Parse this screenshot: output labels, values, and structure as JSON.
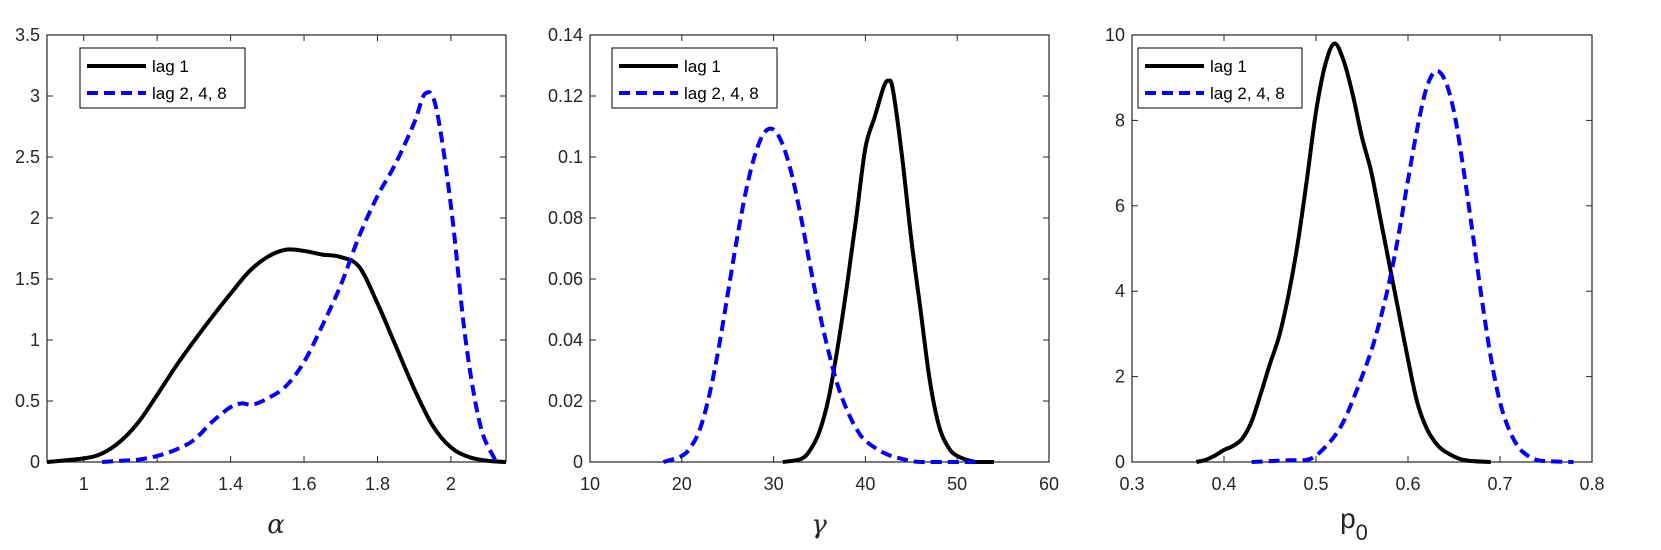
{
  "chart_data": [
    {
      "type": "line",
      "xlabel": "α",
      "ylabel": "",
      "xlim": [
        0.9,
        2.15
      ],
      "ylim": [
        0,
        3.5
      ],
      "xticks": [
        1,
        1.2,
        1.4,
        1.6,
        1.8,
        2
      ],
      "xtick_labels": [
        "1",
        "1.2",
        "1.4",
        "1.6",
        "1.8",
        "2"
      ],
      "yticks": [
        0,
        0.5,
        1,
        1.5,
        2,
        2.5,
        3,
        3.5
      ],
      "ytick_labels": [
        "0",
        "0.5",
        "1",
        "1.5",
        "2",
        "2.5",
        "3",
        "3.5"
      ],
      "legend_position": "top-left",
      "series": [
        {
          "name": "lag 1",
          "color": "#000000",
          "style": "solid",
          "x": [
            0.9,
            1.0,
            1.05,
            1.1,
            1.15,
            1.2,
            1.25,
            1.3,
            1.35,
            1.4,
            1.45,
            1.5,
            1.55,
            1.6,
            1.65,
            1.7,
            1.75,
            1.8,
            1.85,
            1.9,
            1.95,
            2.0,
            2.05,
            2.1,
            2.15
          ],
          "y": [
            0.0,
            0.03,
            0.07,
            0.17,
            0.33,
            0.55,
            0.78,
            0.99,
            1.19,
            1.38,
            1.56,
            1.68,
            1.74,
            1.73,
            1.7,
            1.68,
            1.6,
            1.3,
            0.95,
            0.6,
            0.3,
            0.12,
            0.04,
            0.01,
            0.0
          ]
        },
        {
          "name": "lag 2, 4, 8",
          "color": "#0000ff",
          "style": "dashed",
          "x": [
            1.05,
            1.1,
            1.15,
            1.2,
            1.25,
            1.3,
            1.35,
            1.4,
            1.43,
            1.46,
            1.5,
            1.55,
            1.6,
            1.65,
            1.7,
            1.75,
            1.8,
            1.85,
            1.9,
            1.93,
            1.96,
            2.0,
            2.04,
            2.08,
            2.12
          ],
          "y": [
            0.0,
            0.01,
            0.02,
            0.05,
            0.1,
            0.18,
            0.33,
            0.45,
            0.48,
            0.47,
            0.52,
            0.62,
            0.82,
            1.12,
            1.45,
            1.85,
            2.18,
            2.45,
            2.78,
            3.02,
            2.9,
            2.1,
            1.0,
            0.3,
            0.02
          ]
        }
      ]
    },
    {
      "type": "line",
      "xlabel": "γ",
      "ylabel": "",
      "xlim": [
        10,
        60
      ],
      "ylim": [
        0,
        0.14
      ],
      "xticks": [
        10,
        20,
        30,
        40,
        50,
        60
      ],
      "xtick_labels": [
        "10",
        "20",
        "30",
        "40",
        "50",
        "60"
      ],
      "yticks": [
        0,
        0.02,
        0.04,
        0.06,
        0.08,
        0.1,
        0.12,
        0.14
      ],
      "ytick_labels": [
        "0",
        "0.02",
        "0.04",
        "0.06",
        "0.08",
        "0.1",
        "0.12",
        "0.14"
      ],
      "legend_position": "top-left",
      "series": [
        {
          "name": "lag 1",
          "color": "#000000",
          "style": "solid",
          "x": [
            31,
            33,
            34,
            35,
            36,
            37,
            38,
            39,
            40,
            41,
            42,
            42.5,
            43,
            44,
            45,
            46,
            47,
            48,
            49,
            50,
            52,
            54
          ],
          "y": [
            0.0,
            0.001,
            0.004,
            0.01,
            0.021,
            0.038,
            0.058,
            0.08,
            0.103,
            0.113,
            0.123,
            0.125,
            0.122,
            0.1,
            0.073,
            0.05,
            0.027,
            0.012,
            0.005,
            0.002,
            0.0,
            0.0
          ]
        },
        {
          "name": "lag 2, 4, 8",
          "color": "#0000ff",
          "style": "dashed",
          "x": [
            18,
            20,
            21,
            22,
            23,
            24,
            25,
            26,
            27,
            28,
            29,
            30,
            31,
            32,
            33,
            34,
            35,
            36,
            37,
            38,
            39,
            40,
            42,
            44,
            46,
            50,
            52
          ],
          "y": [
            0.0,
            0.002,
            0.005,
            0.011,
            0.022,
            0.037,
            0.055,
            0.073,
            0.089,
            0.101,
            0.108,
            0.109,
            0.104,
            0.094,
            0.08,
            0.064,
            0.049,
            0.036,
            0.025,
            0.017,
            0.011,
            0.007,
            0.003,
            0.001,
            0.0,
            0.0,
            0.0
          ]
        }
      ]
    },
    {
      "type": "line",
      "xlabel": "p",
      "xlabel_subscript": "0",
      "ylabel": "",
      "xlim": [
        0.3,
        0.8
      ],
      "ylim": [
        0,
        10
      ],
      "xticks": [
        0.3,
        0.4,
        0.5,
        0.6,
        0.7,
        0.8
      ],
      "xtick_labels": [
        "0.3",
        "0.4",
        "0.5",
        "0.6",
        "0.7",
        "0.8"
      ],
      "yticks": [
        0,
        2,
        4,
        6,
        8,
        10
      ],
      "ytick_labels": [
        "0",
        "2",
        "4",
        "6",
        "8",
        "10"
      ],
      "legend_position": "top-left",
      "series": [
        {
          "name": "lag 1",
          "color": "#000000",
          "style": "solid",
          "x": [
            0.37,
            0.38,
            0.39,
            0.4,
            0.41,
            0.42,
            0.43,
            0.44,
            0.45,
            0.46,
            0.47,
            0.48,
            0.49,
            0.5,
            0.51,
            0.52,
            0.53,
            0.54,
            0.55,
            0.56,
            0.57,
            0.58,
            0.59,
            0.6,
            0.61,
            0.62,
            0.63,
            0.64,
            0.66,
            0.69
          ],
          "y": [
            0.0,
            0.05,
            0.15,
            0.28,
            0.38,
            0.55,
            0.95,
            1.6,
            2.3,
            2.95,
            3.9,
            5.1,
            6.6,
            8.2,
            9.3,
            9.8,
            9.4,
            8.6,
            7.6,
            6.8,
            5.7,
            4.6,
            3.5,
            2.4,
            1.4,
            0.8,
            0.45,
            0.25,
            0.05,
            0.0
          ]
        },
        {
          "name": "lag 2, 4, 8",
          "color": "#0000ff",
          "style": "dashed",
          "x": [
            0.43,
            0.45,
            0.47,
            0.49,
            0.5,
            0.51,
            0.52,
            0.53,
            0.54,
            0.55,
            0.56,
            0.57,
            0.58,
            0.59,
            0.6,
            0.61,
            0.62,
            0.63,
            0.64,
            0.65,
            0.66,
            0.67,
            0.68,
            0.69,
            0.7,
            0.71,
            0.72,
            0.73,
            0.74,
            0.75,
            0.78
          ],
          "y": [
            0.0,
            0.02,
            0.04,
            0.05,
            0.15,
            0.35,
            0.6,
            0.95,
            1.45,
            2.0,
            2.6,
            3.35,
            4.25,
            5.35,
            6.6,
            7.8,
            8.75,
            9.15,
            8.95,
            8.2,
            6.9,
            5.4,
            3.85,
            2.45,
            1.4,
            0.75,
            0.35,
            0.15,
            0.05,
            0.02,
            0.0
          ]
        }
      ]
    }
  ]
}
